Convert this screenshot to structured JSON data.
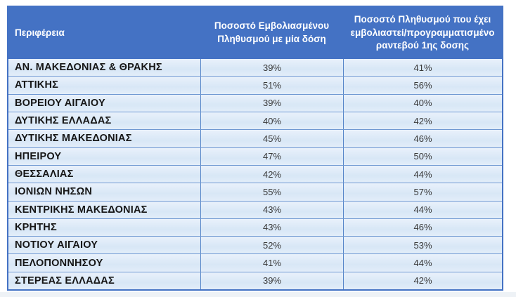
{
  "table": {
    "columns": [
      {
        "label": "Περιφέρεια"
      },
      {
        "label": "Ποσοστό Εμβολιασμένου Πληθυσμού με μία δόση"
      },
      {
        "label": "Ποσοστό Πληθυσμού  που έχει εμβολιαστεί/προγραμματισμένο ραντεβού 1ης δοσης"
      }
    ],
    "rows": [
      {
        "region": "ΑΝ. ΜΑΚΕΔΟΝΙΑΣ & ΘΡΑΚΗΣ",
        "dose1": "39%",
        "scheduled": "41%"
      },
      {
        "region": "ΑΤΤΙΚΗΣ",
        "dose1": "51%",
        "scheduled": "56%"
      },
      {
        "region": "ΒΟΡΕΙΟΥ ΑΙΓΑΙΟΥ",
        "dose1": "39%",
        "scheduled": "40%"
      },
      {
        "region": "ΔΥΤΙΚΗΣ ΕΛΛΑΔΑΣ",
        "dose1": "40%",
        "scheduled": "42%"
      },
      {
        "region": "ΔΥΤΙΚΗΣ ΜΑΚΕΔΟΝΙΑΣ",
        "dose1": "45%",
        "scheduled": "46%"
      },
      {
        "region": "ΗΠΕΙΡΟΥ",
        "dose1": "47%",
        "scheduled": "50%"
      },
      {
        "region": "ΘΕΣΣΑΛΙΑΣ",
        "dose1": "42%",
        "scheduled": "44%"
      },
      {
        "region": "ΙΟΝΙΩΝ ΝΗΣΩΝ",
        "dose1": "55%",
        "scheduled": "57%"
      },
      {
        "region": "ΚΕΝΤΡΙΚΗΣ ΜΑΚΕΔΟΝΙΑΣ",
        "dose1": "43%",
        "scheduled": "44%"
      },
      {
        "region": "ΚΡΗΤΗΣ",
        "dose1": "43%",
        "scheduled": "46%"
      },
      {
        "region": "ΝΟΤΙΟΥ ΑΙΓΑΙΟΥ",
        "dose1": "52%",
        "scheduled": "53%"
      },
      {
        "region": "ΠΕΛΟΠΟΝΝΗΣΟΥ",
        "dose1": "41%",
        "scheduled": "44%"
      },
      {
        "region": "ΣΤΕΡΕΑΣ ΕΛΛΑΔΑΣ",
        "dose1": "39%",
        "scheduled": "42%"
      }
    ]
  },
  "colors": {
    "header_bg": "#4472C4",
    "header_text": "#FFFFFF",
    "row_bg": "#DCE9F7",
    "grid_line": "#5585C8",
    "outer_border": "#4472C4",
    "region_text": "#161616",
    "value_text": "#3A3A3A"
  },
  "chart_data": {
    "type": "table",
    "title": "",
    "columns": [
      "Περιφέρεια",
      "Ποσοστό Εμβολιασμένου Πληθυσμού με μία δόση",
      "Ποσοστό Πληθυσμού  που έχει εμβολιαστεί/προγραμματισμένο ραντεβού 1ης δοσης"
    ],
    "categories": [
      "ΑΝ. ΜΑΚΕΔΟΝΙΑΣ & ΘΡΑΚΗΣ",
      "ΑΤΤΙΚΗΣ",
      "ΒΟΡΕΙΟΥ ΑΙΓΑΙΟΥ",
      "ΔΥΤΙΚΗΣ ΕΛΛΑΔΑΣ",
      "ΔΥΤΙΚΗΣ ΜΑΚΕΔΟΝΙΑΣ",
      "ΗΠΕΙΡΟΥ",
      "ΘΕΣΣΑΛΙΑΣ",
      "ΙΟΝΙΩΝ ΝΗΣΩΝ",
      "ΚΕΝΤΡΙΚΗΣ ΜΑΚΕΔΟΝΙΑΣ",
      "ΚΡΗΤΗΣ",
      "ΝΟΤΙΟΥ ΑΙΓΑΙΟΥ",
      "ΠΕΛΟΠΟΝΝΗΣΟΥ",
      "ΣΤΕΡΕΑΣ ΕΛΛΑΔΑΣ"
    ],
    "series": [
      {
        "name": "Ποσοστό Εμβολιασμένου Πληθυσμού με μία δόση (%)",
        "values": [
          39,
          51,
          39,
          40,
          45,
          47,
          42,
          55,
          43,
          43,
          52,
          41,
          39
        ]
      },
      {
        "name": "Ποσοστό Πληθυσμού που έχει εμβολιαστεί/προγραμματισμένο ραντεβού 1ης δοσης (%)",
        "values": [
          41,
          56,
          40,
          42,
          46,
          50,
          44,
          57,
          44,
          46,
          53,
          44,
          42
        ]
      }
    ]
  }
}
